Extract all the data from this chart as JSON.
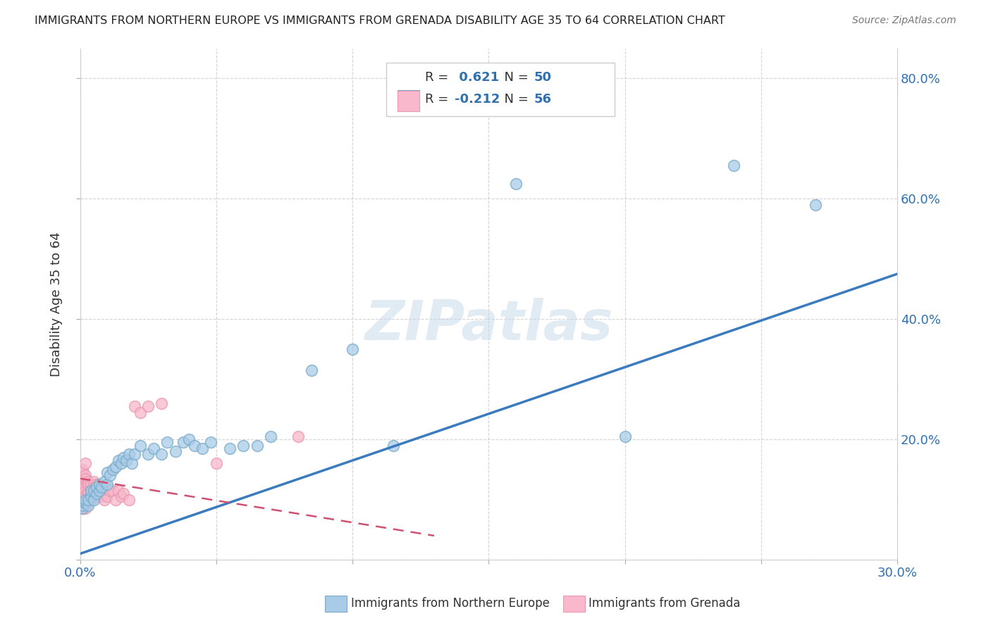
{
  "title": "IMMIGRANTS FROM NORTHERN EUROPE VS IMMIGRANTS FROM GRENADA DISABILITY AGE 35 TO 64 CORRELATION CHART",
  "source": "Source: ZipAtlas.com",
  "ylabel": "Disability Age 35 to 64",
  "xlim": [
    0.0,
    0.3
  ],
  "ylim": [
    0.0,
    0.85
  ],
  "blue_R": 0.621,
  "blue_N": 50,
  "pink_R": -0.212,
  "pink_N": 56,
  "blue_color": "#a8cce8",
  "pink_color": "#f9b8cb",
  "blue_edge_color": "#7aaac8",
  "pink_edge_color": "#e898b0",
  "blue_line_color": "#3a7bbf",
  "pink_line_color": "#d05070",
  "watermark": "ZIPatlas",
  "legend_label_blue": "Immigrants from Northern Europe",
  "legend_label_pink": "Immigrants from Grenada",
  "blue_line_x0": 0.0,
  "blue_line_y0": 0.01,
  "blue_line_x1": 0.3,
  "blue_line_y1": 0.475,
  "pink_line_x0": 0.0,
  "pink_line_y0": 0.135,
  "pink_line_x1": 0.13,
  "pink_line_y1": 0.04,
  "blue_points_x": [
    0.001,
    0.001,
    0.002,
    0.002,
    0.003,
    0.003,
    0.004,
    0.004,
    0.005,
    0.005,
    0.006,
    0.006,
    0.007,
    0.007,
    0.008,
    0.009,
    0.01,
    0.01,
    0.011,
    0.012,
    0.013,
    0.014,
    0.015,
    0.016,
    0.017,
    0.018,
    0.019,
    0.02,
    0.022,
    0.025,
    0.027,
    0.03,
    0.032,
    0.035,
    0.038,
    0.04,
    0.042,
    0.045,
    0.048,
    0.055,
    0.06,
    0.065,
    0.07,
    0.085,
    0.1,
    0.115,
    0.16,
    0.2,
    0.24,
    0.27
  ],
  "blue_points_y": [
    0.085,
    0.09,
    0.095,
    0.1,
    0.09,
    0.1,
    0.105,
    0.115,
    0.1,
    0.115,
    0.11,
    0.12,
    0.115,
    0.125,
    0.12,
    0.13,
    0.125,
    0.145,
    0.14,
    0.15,
    0.155,
    0.165,
    0.16,
    0.17,
    0.165,
    0.175,
    0.16,
    0.175,
    0.19,
    0.175,
    0.185,
    0.175,
    0.195,
    0.18,
    0.195,
    0.2,
    0.19,
    0.185,
    0.195,
    0.185,
    0.19,
    0.19,
    0.205,
    0.315,
    0.35,
    0.19,
    0.625,
    0.205,
    0.655,
    0.59
  ],
  "pink_points_x": [
    0.001,
    0.001,
    0.001,
    0.001,
    0.001,
    0.001,
    0.001,
    0.001,
    0.001,
    0.001,
    0.001,
    0.001,
    0.002,
    0.002,
    0.002,
    0.002,
    0.002,
    0.002,
    0.002,
    0.002,
    0.002,
    0.003,
    0.003,
    0.003,
    0.003,
    0.003,
    0.004,
    0.004,
    0.004,
    0.005,
    0.005,
    0.005,
    0.006,
    0.006,
    0.006,
    0.007,
    0.007,
    0.008,
    0.008,
    0.009,
    0.009,
    0.01,
    0.01,
    0.011,
    0.012,
    0.013,
    0.014,
    0.015,
    0.016,
    0.018,
    0.02,
    0.022,
    0.025,
    0.03,
    0.05,
    0.08
  ],
  "pink_points_y": [
    0.135,
    0.145,
    0.13,
    0.125,
    0.12,
    0.115,
    0.11,
    0.1,
    0.095,
    0.09,
    0.085,
    0.15,
    0.14,
    0.135,
    0.125,
    0.12,
    0.115,
    0.105,
    0.1,
    0.085,
    0.16,
    0.13,
    0.125,
    0.115,
    0.11,
    0.095,
    0.125,
    0.115,
    0.1,
    0.13,
    0.12,
    0.105,
    0.125,
    0.115,
    0.105,
    0.12,
    0.105,
    0.12,
    0.105,
    0.115,
    0.1,
    0.12,
    0.105,
    0.115,
    0.115,
    0.1,
    0.115,
    0.105,
    0.11,
    0.1,
    0.255,
    0.245,
    0.255,
    0.26,
    0.16,
    0.205
  ],
  "ytick_positions": [
    0.0,
    0.2,
    0.4,
    0.6,
    0.8
  ],
  "ytick_labels": [
    "",
    "20.0%",
    "40.0%",
    "60.0%",
    "80.0%"
  ]
}
